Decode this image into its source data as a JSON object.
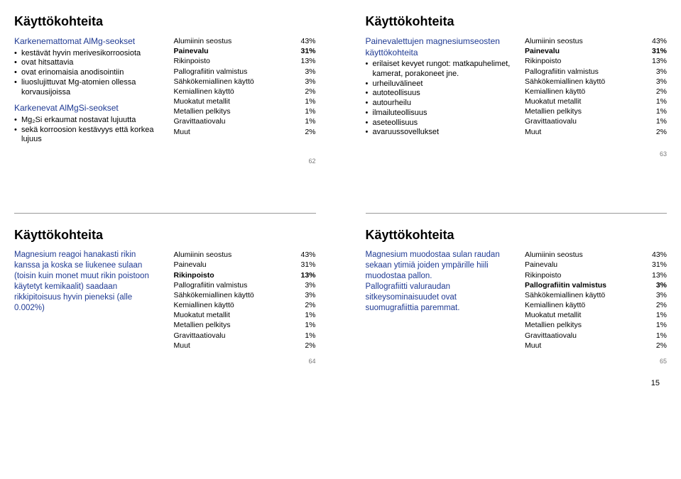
{
  "common_title": "Käyttökohteita",
  "table": {
    "rows": [
      {
        "label": "Alumiinin seostus",
        "value": "43%"
      },
      {
        "label": "Painevalu",
        "value": "31%"
      },
      {
        "label": "Rikinpoisto",
        "value": "13%"
      },
      {
        "label": "Pallografiitin valmistus",
        "value": "3%"
      },
      {
        "label": "Sähkökemiallinen käyttö",
        "value": "3%"
      },
      {
        "label": "Kemiallinen käyttö",
        "value": "2%"
      },
      {
        "label": "Muokatut metallit",
        "value": "1%"
      },
      {
        "label": "Metallien pelkitys",
        "value": "1%"
      },
      {
        "label": "Gravittaatiovalu",
        "value": "1%"
      },
      {
        "label": "Muut",
        "value": "2%"
      }
    ]
  },
  "slide62": {
    "num": "62",
    "bold_row_idx": 1,
    "sub1": "Karkenemattomat AlMg-seokset",
    "bullets1": [
      "kestävät hyvin merivesikorroosiota",
      "ovat hitsattavia",
      "ovat erinomaisia anodisointiin",
      "liuoslujittuvat Mg-atomien ollessa korvausijoissa"
    ],
    "sub2": "Karkenevat AlMgSi-seokset",
    "bullets2": [
      "Mg₂Si erkaumat nostavat lujuutta",
      "sekä korroosion kestävyys että korkea lujuus"
    ]
  },
  "slide63": {
    "num": "63",
    "bold_row_idx": 1,
    "sub": "Painevalettujen magnesiumseosten käyttökohteita",
    "bullets": [
      "erilaiset kevyet rungot: matkapuhelimet, kamerat, porakoneet jne.",
      "urheiluvälineet",
      "autoteollisuus",
      "autourheilu",
      "ilmailuteollisuus",
      "aseteollisuus",
      "avaruussovellukset"
    ]
  },
  "slide64": {
    "num": "64",
    "bold_row_idx": 2,
    "para": "Magnesium reagoi hanakasti rikin kanssa ja koska se liukenee sulaan (toisin kuin monet muut rikin poistoon käytetyt kemikaalit) saadaan rikkipitoisuus hyvin pieneksi (alle 0.002%)"
  },
  "slide65": {
    "num": "65",
    "bold_row_idx": 3,
    "para": "Magnesium muodostaa sulan raudan sekaan ytimiä joiden ympärille hiili muodostaa pallon.",
    "para2": "Pallografiitti valuraudan sitkeysominaisuudet ovat suomugrafiittia paremmat."
  },
  "page_number": "15"
}
